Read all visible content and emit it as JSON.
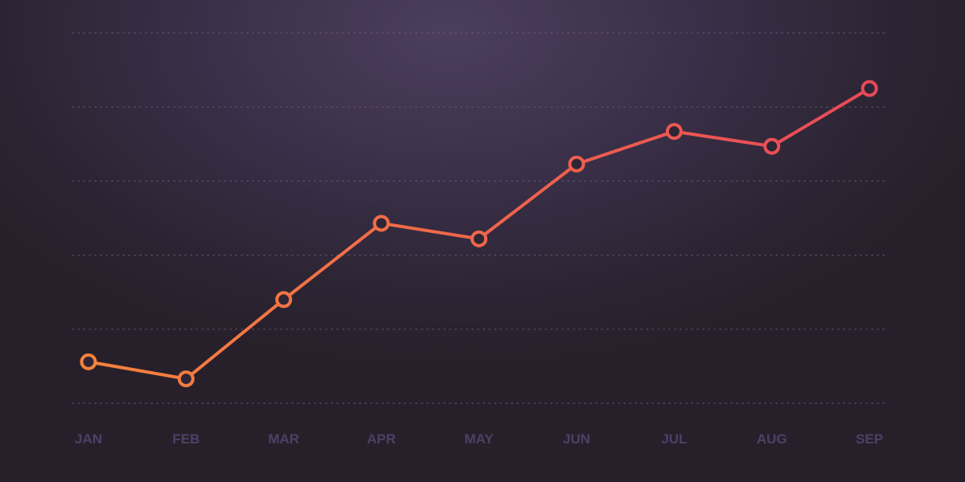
{
  "chart_data": {
    "type": "line",
    "title": "",
    "xlabel": "",
    "ylabel": "",
    "categories": [
      "JAN",
      "FEB",
      "MAR",
      "APR",
      "MAY",
      "JUN",
      "JUL",
      "AUG",
      "SEP"
    ],
    "series": [
      {
        "values": [
          0.56,
          0.33,
          1.4,
          2.43,
          2.22,
          3.23,
          3.67,
          3.47,
          4.25
        ]
      }
    ],
    "ylim": [
      0,
      5
    ],
    "y_tick_labels_shown": false,
    "grid": "horizontal dotted",
    "legend": "none",
    "colors": {
      "line_start": "#f7893a",
      "line_end": "#e8425c",
      "grid": "#6a5a78",
      "tick_label": "#4f4066"
    }
  }
}
